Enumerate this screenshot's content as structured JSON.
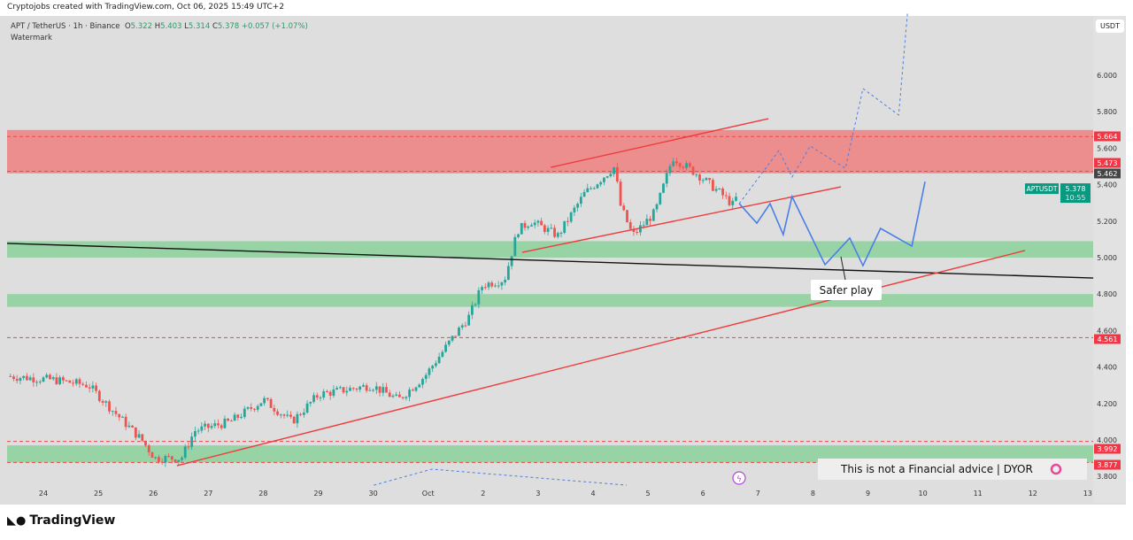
{
  "credit": "Cryptojobs created with TradingView.com, Oct 06, 2025 15:49 UTC+2",
  "legend": {
    "symbol": "APT / TetherUS · 1h · Binance",
    "o_label": "O",
    "o": "5.322",
    "h_label": "H",
    "h": "5.403",
    "l_label": "L",
    "l": "5.314",
    "c_label": "C",
    "c": "5.378",
    "change": "+0.057 (+1.07%)",
    "watermark": "Watermark"
  },
  "currency": "USDT",
  "brand": "TradingView",
  "disclaimer": "This is not a Financial advice | DYOR",
  "annotation": "Safer play",
  "colors": {
    "up": "#26a69a",
    "down": "#ef5350",
    "red_zone": "#f08080",
    "green_zone": "#8fd19e",
    "blue": "#4a7ee8",
    "badge_red": "#f23645",
    "badge_green": "#089981"
  },
  "chart_data": {
    "type": "candlestick",
    "title": "APT / TetherUS · 1h · Binance",
    "x_unit": "days since Sep 24",
    "xticks": [
      {
        "t": 0,
        "label": "24"
      },
      {
        "t": 1,
        "label": "25"
      },
      {
        "t": 2,
        "label": "26"
      },
      {
        "t": 3,
        "label": "27"
      },
      {
        "t": 4,
        "label": "28"
      },
      {
        "t": 5,
        "label": "29"
      },
      {
        "t": 6,
        "label": "30"
      },
      {
        "t": 7,
        "label": "Oct"
      },
      {
        "t": 8,
        "label": "2"
      },
      {
        "t": 9,
        "label": "3"
      },
      {
        "t": 10,
        "label": "4"
      },
      {
        "t": 11,
        "label": "5"
      },
      {
        "t": 12,
        "label": "6"
      },
      {
        "t": 13,
        "label": "7"
      },
      {
        "t": 14,
        "label": "8"
      },
      {
        "t": 15,
        "label": "9"
      },
      {
        "t": 16,
        "label": "10"
      },
      {
        "t": 17,
        "label": "11"
      },
      {
        "t": 18,
        "label": "12"
      },
      {
        "t": 19,
        "label": "13"
      }
    ],
    "yticks": [
      "6.000",
      "5.800",
      "5.600",
      "5.400",
      "5.200",
      "5.000",
      "4.800",
      "4.600",
      "4.400",
      "4.200",
      "4.000",
      "3.800"
    ],
    "ylim": [
      3.75,
      6.3
    ],
    "price_path": [
      [
        -0.66,
        4.35
      ],
      [
        0.18,
        4.33
      ],
      [
        0.82,
        4.3
      ],
      [
        1.3,
        4.15
      ],
      [
        1.79,
        4.0
      ],
      [
        2.03,
        3.9
      ],
      [
        2.51,
        3.9
      ],
      [
        2.75,
        4.05
      ],
      [
        3.4,
        4.1
      ],
      [
        4.01,
        4.22
      ],
      [
        4.52,
        4.1
      ],
      [
        5.01,
        4.25
      ],
      [
        5.97,
        4.3
      ],
      [
        6.46,
        4.22
      ],
      [
        6.94,
        4.35
      ],
      [
        7.42,
        4.55
      ],
      [
        7.75,
        4.68
      ],
      [
        7.99,
        4.85
      ],
      [
        8.39,
        4.88
      ],
      [
        8.63,
        5.15
      ],
      [
        8.87,
        5.2
      ],
      [
        9.36,
        5.12
      ],
      [
        9.84,
        5.35
      ],
      [
        10.4,
        5.5
      ],
      [
        10.48,
        5.3
      ],
      [
        10.72,
        5.12
      ],
      [
        11.13,
        5.25
      ],
      [
        11.45,
        5.55
      ],
      [
        11.93,
        5.45
      ],
      [
        12.33,
        5.35
      ],
      [
        12.54,
        5.29
      ],
      [
        12.66,
        5.36
      ]
    ],
    "zones": [
      {
        "type": "resistance",
        "from": 5.462,
        "to": 5.7
      },
      {
        "type": "support",
        "from": 5.0,
        "to": 5.09
      },
      {
        "type": "support",
        "from": 4.73,
        "to": 4.8
      },
      {
        "type": "support",
        "from": 3.877,
        "to": 3.97
      }
    ],
    "price_badges": [
      {
        "value": "5.664",
        "color": "red"
      },
      {
        "value": "5.473",
        "color": "red"
      },
      {
        "value": "5.462",
        "color": "dark"
      },
      {
        "value": "4.561",
        "color": "red"
      },
      {
        "value": "3.992",
        "color": "red"
      },
      {
        "value": "3.877",
        "color": "red"
      }
    ],
    "dashed_levels": [
      5.664,
      5.473,
      4.561,
      3.992,
      3.877
    ],
    "last_price": {
      "label": "APTUSDT",
      "value": "5.378",
      "countdown": "10:55"
    },
    "trendlines": [
      {
        "name": "black-trendline",
        "color": "#111",
        "points": [
          [
            -0.66,
            5.078
          ],
          [
            19.1,
            4.888
          ]
        ]
      },
      {
        "name": "red-long-trendline",
        "color": "#ef3b3b",
        "points": [
          [
            2.43,
            3.859
          ],
          [
            17.86,
            5.039
          ]
        ]
      },
      {
        "name": "channel-upper",
        "color": "#ef3b3b",
        "points": [
          [
            9.23,
            5.495
          ],
          [
            13.19,
            5.762
          ]
        ]
      },
      {
        "name": "channel-lower",
        "color": "#ef3b3b",
        "points": [
          [
            8.71,
            5.029
          ],
          [
            14.51,
            5.388
          ]
        ]
      }
    ],
    "projections": [
      {
        "name": "safer-play-path",
        "dashed": false,
        "points": [
          [
            12.66,
            5.296
          ],
          [
            12.98,
            5.189
          ],
          [
            13.22,
            5.296
          ],
          [
            13.46,
            5.126
          ],
          [
            13.62,
            5.335
          ],
          [
            14.22,
            4.961
          ],
          [
            14.67,
            5.107
          ],
          [
            14.91,
            4.956
          ],
          [
            15.23,
            5.16
          ],
          [
            15.8,
            5.063
          ],
          [
            16.04,
            5.417
          ]
        ]
      },
      {
        "name": "bullish-path",
        "dashed": true,
        "points": [
          [
            12.66,
            5.296
          ],
          [
            13.38,
            5.587
          ],
          [
            13.62,
            5.442
          ],
          [
            13.95,
            5.612
          ],
          [
            14.59,
            5.49
          ],
          [
            14.91,
            5.927
          ],
          [
            15.56,
            5.782
          ],
          [
            15.72,
            6.34
          ]
        ]
      },
      {
        "name": "bottom-dashed-path",
        "dashed": true,
        "points": [
          [
            6.01,
            3.752
          ],
          [
            7.07,
            3.84
          ],
          [
            10.61,
            3.752
          ]
        ]
      }
    ]
  }
}
